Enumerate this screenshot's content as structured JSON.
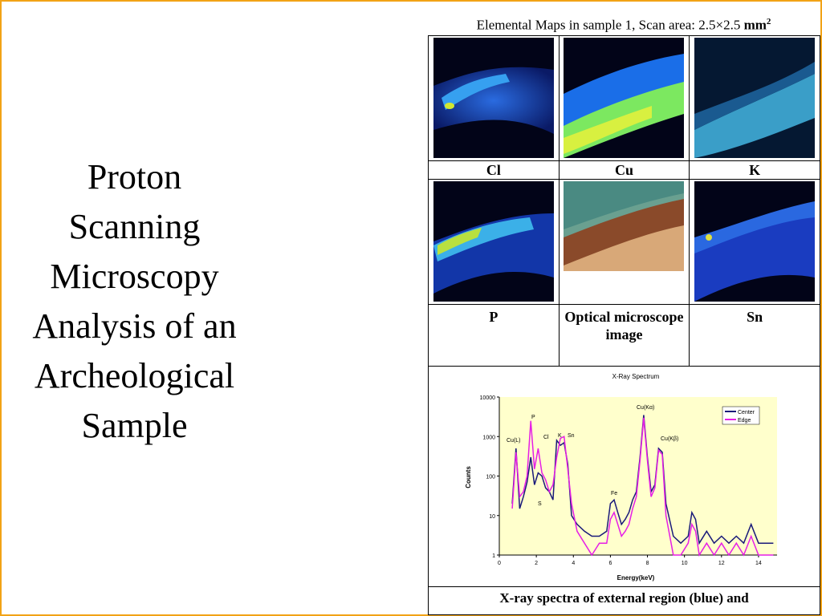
{
  "slide": {
    "title_lines": [
      "Proton",
      "Scanning",
      "Microscopy",
      "Analysis of an",
      "Archeological",
      "Sample"
    ],
    "caption_top": "Elemental Maps in sample 1, Scan area: 2.5×2.5",
    "caption_unit": "mm",
    "caption_sup": "2",
    "bottom_caption": "X-ray spectra of external region (blue) and"
  },
  "maps": {
    "row1": [
      "Cl",
      "Cu",
      "K"
    ],
    "row2_labels": [
      "P",
      "Optical microscope image",
      "Sn"
    ]
  },
  "chart_data": {
    "type": "line",
    "title": "X-Ray Spectrum",
    "xlabel": "Energy(keV)",
    "ylabel": "Counts",
    "x_ticks": [
      "0",
      "2",
      "4",
      "6",
      "8",
      "10",
      "12",
      "14"
    ],
    "y_ticks": [
      "1",
      "10",
      "100",
      "1000",
      "10000"
    ],
    "xlim": [
      0,
      15
    ],
    "ylim": [
      1,
      10000
    ],
    "yscale": "log",
    "legend": "top-right",
    "series": [
      {
        "name": "Center",
        "color": "#1a1a7a",
        "x": [
          0.7,
          0.9,
          1.1,
          1.3,
          1.5,
          1.7,
          1.9,
          2.1,
          2.3,
          2.5,
          2.7,
          2.9,
          3.1,
          3.3,
          3.5,
          3.7,
          3.9,
          4.2,
          4.6,
          5.0,
          5.4,
          5.8,
          6.0,
          6.2,
          6.4,
          6.6,
          6.8,
          7.0,
          7.2,
          7.4,
          7.6,
          7.8,
          8.0,
          8.2,
          8.4,
          8.6,
          8.8,
          9.0,
          9.4,
          9.8,
          10.2,
          10.4,
          10.6,
          10.8,
          11.2,
          11.6,
          12.0,
          12.4,
          12.8,
          13.2,
          13.6,
          14.0,
          14.4,
          14.8
        ],
        "y": [
          20,
          500,
          15,
          30,
          70,
          300,
          60,
          120,
          100,
          50,
          40,
          25,
          800,
          600,
          700,
          200,
          10,
          6,
          4,
          3,
          3,
          4,
          20,
          25,
          12,
          6,
          8,
          12,
          25,
          40,
          300,
          3500,
          300,
          40,
          60,
          500,
          400,
          20,
          3,
          2,
          3,
          12,
          8,
          2,
          4,
          2,
          3,
          2,
          3,
          2,
          6,
          2,
          2,
          2
        ]
      },
      {
        "name": "Edge",
        "color": "#e61ee6",
        "x": [
          0.7,
          0.9,
          1.1,
          1.3,
          1.5,
          1.7,
          1.9,
          2.1,
          2.3,
          2.5,
          2.7,
          2.9,
          3.1,
          3.3,
          3.5,
          3.7,
          3.9,
          4.2,
          4.6,
          5.0,
          5.4,
          5.8,
          6.0,
          6.2,
          6.4,
          6.6,
          6.8,
          7.0,
          7.2,
          7.4,
          7.6,
          7.8,
          8.0,
          8.2,
          8.4,
          8.6,
          8.8,
          9.0,
          9.4,
          9.8,
          10.2,
          10.4,
          10.6,
          10.8,
          11.2,
          11.6,
          12.0,
          12.4,
          12.8,
          13.2,
          13.6,
          14.0,
          14.4,
          14.8
        ],
        "y": [
          15,
          400,
          30,
          40,
          100,
          2500,
          150,
          500,
          120,
          80,
          40,
          60,
          300,
          900,
          1000,
          150,
          20,
          4,
          2,
          1,
          2,
          2,
          8,
          12,
          6,
          3,
          4,
          6,
          15,
          30,
          250,
          3000,
          250,
          30,
          50,
          450,
          350,
          10,
          1,
          1,
          2,
          6,
          4,
          1,
          2,
          1,
          2,
          1,
          2,
          1,
          3,
          1,
          1,
          1
        ]
      }
    ],
    "annotations": [
      "Cu(L)",
      "P",
      "Cl",
      "K",
      "Sn",
      "S",
      "Fe",
      "Cu(Kα)",
      "Cu(Kβ)"
    ]
  }
}
